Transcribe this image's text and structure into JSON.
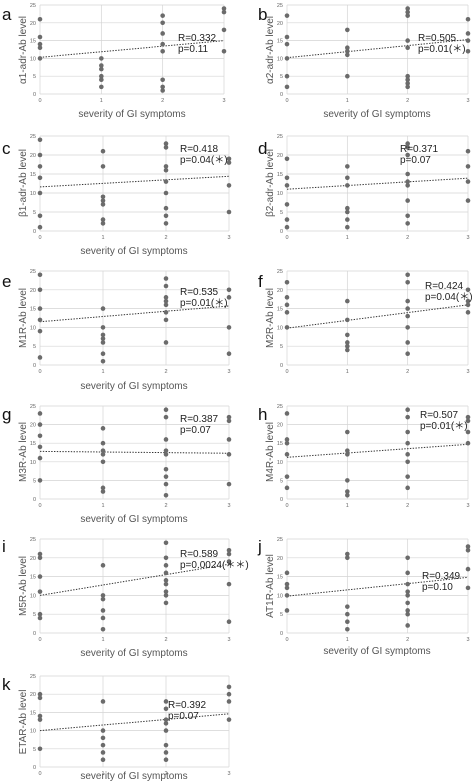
{
  "chart_data": [
    {
      "panel": "a",
      "type": "scatter",
      "xlabel": "severity of GI symptoms",
      "ylabel": "α1-adr-Ab level",
      "xticks": [
        0,
        1,
        2,
        3
      ],
      "yticks": [
        0,
        5,
        10,
        15,
        20,
        25
      ],
      "ylim": [
        0,
        25
      ],
      "r_label": "R=0.332",
      "p_label": "p=0.11",
      "trend": {
        "y0": 10.3,
        "y3": 15.0
      },
      "x": [
        0,
        0,
        0,
        0,
        0,
        1,
        1,
        1,
        1,
        1,
        1,
        2,
        2,
        2,
        2,
        2,
        2,
        2,
        2,
        3,
        3,
        3,
        3
      ],
      "y": [
        21,
        16,
        14,
        13,
        10,
        10,
        8,
        7,
        5,
        4,
        2,
        22,
        20,
        17,
        14,
        12,
        4,
        2,
        1,
        24,
        23,
        18,
        12
      ]
    },
    {
      "panel": "b",
      "type": "scatter",
      "xlabel": "severity of GI symptoms",
      "ylabel": "α2-adr-Ab level",
      "xticks": [
        0,
        1,
        2,
        3
      ],
      "yticks": [
        0,
        5,
        10,
        15,
        20,
        25
      ],
      "ylim": [
        0,
        25
      ],
      "r_label": "R=0.505",
      "p_label": "p=0.01(＊)",
      "trend": {
        "y0": 10.2,
        "y3": 15.3
      },
      "x": [
        0,
        0,
        0,
        0,
        0,
        0,
        1,
        1,
        1,
        1,
        1,
        2,
        2,
        2,
        2,
        2,
        2,
        2,
        2,
        2,
        3,
        3,
        3,
        3
      ],
      "y": [
        22,
        16,
        14,
        10,
        5,
        2,
        18,
        13,
        12,
        11,
        5,
        24,
        23,
        22,
        15,
        13,
        5,
        4,
        3,
        2,
        21,
        17,
        15,
        12
      ]
    },
    {
      "panel": "c",
      "type": "scatter",
      "xlabel": "severity of GI symptoms",
      "ylabel": "β1-adr-Ab level",
      "xticks": [
        0,
        1,
        2,
        3
      ],
      "yticks": [
        0,
        5,
        10,
        15,
        20,
        25
      ],
      "ylim": [
        0,
        25
      ],
      "r_label": "R=0.418",
      "p_label": "p=0.04(＊)",
      "trend": {
        "y0": 11.6,
        "y3": 14.4
      },
      "x": [
        0,
        0,
        0,
        0,
        0,
        0,
        0,
        1,
        1,
        1,
        1,
        1,
        1,
        1,
        2,
        2,
        2,
        2,
        2,
        2,
        2,
        2,
        2,
        3,
        3,
        3,
        3
      ],
      "y": [
        24,
        20,
        17,
        14,
        10,
        4,
        1,
        21,
        17,
        9,
        8,
        7,
        3,
        2,
        23,
        22,
        17,
        16,
        13,
        10,
        6,
        4,
        2,
        19,
        18,
        12,
        5
      ]
    },
    {
      "panel": "d",
      "type": "scatter",
      "xlabel": "",
      "ylabel": "β2-adr-Ab level",
      "xticks": [
        0,
        1,
        2,
        3
      ],
      "yticks": [
        0,
        5,
        10,
        15,
        20,
        25
      ],
      "ylim": [
        0,
        25
      ],
      "r_label": "R=0.371",
      "p_label": "p=0.07",
      "trend": {
        "y0": 11.0,
        "y3": 13.9
      },
      "x": [
        0,
        0,
        0,
        0,
        0,
        0,
        1,
        1,
        1,
        1,
        1,
        1,
        1,
        2,
        2,
        2,
        2,
        2,
        2,
        2,
        2,
        2,
        3,
        3,
        3,
        3
      ],
      "y": [
        19,
        14,
        12,
        7,
        3,
        1,
        17,
        14,
        12,
        6,
        5,
        3,
        1,
        23,
        22,
        20,
        15,
        13,
        12,
        8,
        4,
        2,
        21,
        17,
        13,
        8
      ]
    },
    {
      "panel": "e",
      "type": "scatter",
      "xlabel": "severity of GI symptoms",
      "ylabel": "M1R-Ab level",
      "xticks": [
        0,
        1,
        2,
        3
      ],
      "yticks": [
        0,
        5,
        10,
        15,
        20,
        25
      ],
      "ylim": [
        0,
        25
      ],
      "r_label": "R=0.535",
      "p_label": "p=0.01(＊)",
      "trend": {
        "y0": 11.5,
        "y3": 15.7
      },
      "x": [
        0,
        0,
        0,
        0,
        0,
        0,
        1,
        1,
        1,
        1,
        1,
        1,
        1,
        2,
        2,
        2,
        2,
        2,
        2,
        2,
        2,
        3,
        3,
        3,
        3
      ],
      "y": [
        24,
        20,
        15,
        12,
        9,
        2,
        15,
        10,
        8,
        7,
        6,
        3,
        1,
        23,
        21,
        18,
        17,
        16,
        14,
        12,
        6,
        20,
        18,
        10,
        3
      ]
    },
    {
      "panel": "f",
      "type": "scatter",
      "xlabel": "",
      "ylabel": "M2R-Ab level",
      "xticks": [
        0,
        1,
        2,
        3
      ],
      "yticks": [
        0,
        5,
        10,
        15,
        20,
        25
      ],
      "ylim": [
        0,
        25
      ],
      "r_label": "R=0.424",
      "p_label": "p=0.04(＊)",
      "trend": {
        "y0": 9.8,
        "y3": 16.0
      },
      "x": [
        0,
        0,
        0,
        0,
        0,
        1,
        1,
        1,
        1,
        1,
        1,
        2,
        2,
        2,
        2,
        2,
        2,
        2,
        2,
        3,
        3,
        3,
        3
      ],
      "y": [
        22,
        18,
        16,
        14,
        10,
        17,
        12,
        8,
        6,
        5,
        4,
        24,
        22,
        17,
        15,
        13,
        10,
        6,
        3,
        20,
        17,
        16,
        14
      ]
    },
    {
      "panel": "g",
      "type": "scatter",
      "xlabel": "severity of GI symptoms",
      "ylabel": "M3R-Ab level",
      "xticks": [
        0,
        1,
        2,
        3
      ],
      "yticks": [
        0,
        5,
        10,
        15,
        20,
        25
      ],
      "ylim": [
        0,
        25
      ],
      "r_label": "R=0.387",
      "p_label": "p=0.07",
      "trend": {
        "y0": 12.8,
        "y3": 12.3
      },
      "x": [
        0,
        0,
        0,
        0,
        0,
        0,
        1,
        1,
        1,
        1,
        1,
        1,
        1,
        2,
        2,
        2,
        2,
        2,
        2,
        2,
        2,
        2,
        3,
        3,
        3,
        3,
        3
      ],
      "y": [
        23,
        20,
        17,
        14,
        11,
        5,
        19,
        15,
        13,
        12,
        10,
        3,
        2,
        24,
        22,
        16,
        13,
        12,
        8,
        6,
        4,
        1,
        22,
        21,
        16,
        12,
        4
      ]
    },
    {
      "panel": "h",
      "type": "scatter",
      "xlabel": "",
      "ylabel": "M4R-Ab level",
      "xticks": [
        0,
        1,
        2,
        3
      ],
      "yticks": [
        0,
        5,
        10,
        15,
        20,
        25
      ],
      "ylim": [
        0,
        25
      ],
      "r_label": "R=0.507",
      "p_label": "p=0.01(＊)",
      "trend": {
        "y0": 11.2,
        "y3": 14.7
      },
      "x": [
        0,
        0,
        0,
        0,
        0,
        0,
        1,
        1,
        1,
        1,
        1,
        1,
        2,
        2,
        2,
        2,
        2,
        2,
        2,
        2,
        3,
        3,
        3,
        3
      ],
      "y": [
        23,
        16,
        15,
        12,
        6,
        3,
        18,
        13,
        12,
        5,
        2,
        1,
        24,
        22,
        18,
        15,
        12,
        10,
        6,
        3,
        22,
        21,
        18,
        15
      ]
    },
    {
      "panel": "i",
      "type": "scatter",
      "xlabel": "severity of GI symptoms",
      "ylabel": "M5R-Ab level",
      "xticks": [
        0,
        1,
        2,
        3
      ],
      "yticks": [
        0,
        5,
        10,
        15,
        20,
        25
      ],
      "ylim": [
        0,
        25
      ],
      "r_label": "R=0.589",
      "p_label": "p=0.0024(＊＊)",
      "trend": {
        "y0": 10.0,
        "y3": 18.3
      },
      "x": [
        0,
        0,
        0,
        0,
        0,
        0,
        1,
        1,
        1,
        1,
        1,
        1,
        2,
        2,
        2,
        2,
        2,
        2,
        2,
        2,
        2,
        3,
        3,
        3,
        3,
        3
      ],
      "y": [
        21,
        20,
        15,
        11,
        5,
        4,
        18,
        10,
        9,
        6,
        4,
        1,
        24,
        20,
        18,
        16,
        14,
        13,
        11,
        10,
        8,
        22,
        21,
        19,
        13,
        3
      ]
    },
    {
      "panel": "j",
      "type": "scatter",
      "xlabel": "severity of  GI  symptoms",
      "ylabel": "AT1R-Ab level",
      "xticks": [
        0,
        1,
        2,
        3
      ],
      "yticks": [
        0,
        5,
        10,
        15,
        20,
        25
      ],
      "ylim": [
        0,
        25
      ],
      "r_label": "R=0.349",
      "p_label": "p=0.10",
      "trend": {
        "y0": 9.8,
        "y3": 14.8
      },
      "x": [
        0,
        0,
        0,
        0,
        0,
        1,
        1,
        1,
        1,
        1,
        1,
        2,
        2,
        2,
        2,
        2,
        2,
        2,
        2,
        2,
        3,
        3,
        3,
        3
      ],
      "y": [
        16,
        13,
        12,
        10,
        6,
        21,
        20,
        7,
        5,
        3,
        1,
        20,
        16,
        13,
        11,
        10,
        8,
        6,
        5,
        2,
        23,
        22,
        17,
        12
      ]
    },
    {
      "panel": "k",
      "type": "scatter",
      "xlabel": "severity of GI symptoms",
      "ylabel": "ETAR-Ab level",
      "xticks": [
        0,
        1,
        2,
        3
      ],
      "yticks": [
        0,
        5,
        10,
        15,
        20,
        25
      ],
      "ylim": [
        0,
        25
      ],
      "r_label": "R=0.392",
      "p_label": "p=0.07",
      "trend": {
        "y0": 10.0,
        "y3": 14.6
      },
      "x": [
        0,
        0,
        0,
        0,
        0,
        1,
        1,
        1,
        1,
        1,
        1,
        2,
        2,
        2,
        2,
        2,
        2,
        2,
        2,
        3,
        3,
        3,
        3
      ],
      "y": [
        20,
        19,
        14,
        13,
        5,
        18,
        10,
        8,
        6,
        4,
        2,
        18,
        16,
        13,
        12,
        10,
        6,
        4,
        2,
        22,
        20,
        18,
        13
      ]
    }
  ]
}
